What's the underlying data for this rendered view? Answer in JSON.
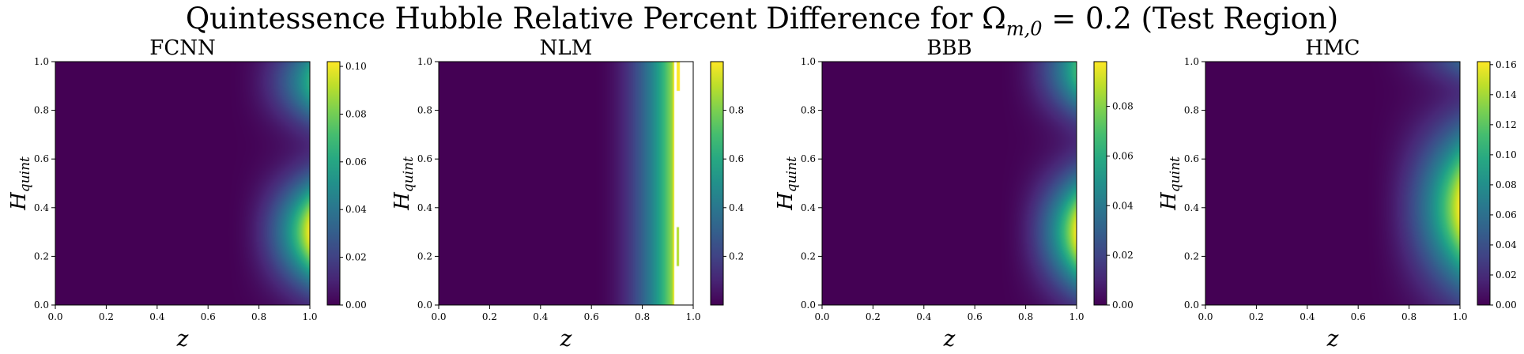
{
  "title": {
    "prefix": "Quintessence Hubble Relative Percent Difference for Ω",
    "subscript": "m,0",
    "suffix": " = 0.2 (Test Region)"
  },
  "colormap": "viridis",
  "colors": {
    "viridis_low": "#440154",
    "viridis_mid": "#21918c",
    "viridis_high": "#fde725"
  },
  "chart_data": [
    {
      "type": "heatmap",
      "title": "FCNN",
      "xlabel": "z",
      "ylabel": "H_quint",
      "xlim": [
        0,
        1
      ],
      "ylim": [
        0,
        1
      ],
      "xticks": [
        "0.0",
        "0.2",
        "0.4",
        "0.6",
        "0.8",
        "1.0"
      ],
      "yticks": [
        "0.0",
        "0.2",
        "0.4",
        "0.6",
        "0.8",
        "1.0"
      ],
      "colorbar": {
        "min": 0.0,
        "max": 0.102,
        "ticks": [
          "0.00",
          "0.02",
          "0.04",
          "0.06",
          "0.08",
          "0.10"
        ],
        "tick_values": [
          0.0,
          0.02,
          0.04,
          0.06,
          0.08,
          0.1
        ]
      },
      "pattern": "two lobes at right edge: lower lobe centered near H=0.3 (max ~0.10), upper lobe near H=0.9 (~0.07), minimum band near H=0.65"
    },
    {
      "type": "heatmap",
      "title": "NLM",
      "xlabel": "z",
      "ylabel": "H_quint",
      "xlim": [
        0,
        1
      ],
      "ylim": [
        0,
        1
      ],
      "xticks": [
        "0.0",
        "0.2",
        "0.4",
        "0.6",
        "0.8",
        "1.0"
      ],
      "yticks": [
        "0.0",
        "0.2",
        "0.4",
        "0.6",
        "0.8",
        "1.0"
      ],
      "colorbar": {
        "min": 0.0,
        "max": 1.0,
        "ticks": [
          "0.2",
          "0.4",
          "0.6",
          "0.8"
        ],
        "tick_values": [
          0.2,
          0.4,
          0.6,
          0.8
        ]
      },
      "pattern": "gradient increasing with z, NaN (blank) region for z > ~0.93"
    },
    {
      "type": "heatmap",
      "title": "BBB",
      "xlabel": "z",
      "ylabel": "H_quint",
      "xlim": [
        0,
        1
      ],
      "ylim": [
        0,
        1
      ],
      "xticks": [
        "0.0",
        "0.2",
        "0.4",
        "0.6",
        "0.8",
        "1.0"
      ],
      "yticks": [
        "0.0",
        "0.2",
        "0.4",
        "0.6",
        "0.8",
        "1.0"
      ],
      "colorbar": {
        "min": 0.0,
        "max": 0.098,
        "ticks": [
          "0.00",
          "0.02",
          "0.04",
          "0.06",
          "0.08"
        ],
        "tick_values": [
          0.0,
          0.02,
          0.04,
          0.06,
          0.08
        ]
      },
      "pattern": "two lobes at right edge: lower lobe near H=0.3 (~0.098), upper lobe near H=0.95 (~0.07)"
    },
    {
      "type": "heatmap",
      "title": "HMC",
      "xlabel": "z",
      "ylabel": "H_quint",
      "xlim": [
        0,
        1
      ],
      "ylim": [
        0,
        1
      ],
      "xticks": [
        "0.0",
        "0.2",
        "0.4",
        "0.6",
        "0.8",
        "1.0"
      ],
      "yticks": [
        "0.0",
        "0.2",
        "0.4",
        "0.6",
        "0.8",
        "1.0"
      ],
      "colorbar": {
        "min": 0.0,
        "max": 0.162,
        "ticks": [
          "0.00",
          "0.02",
          "0.04",
          "0.06",
          "0.08",
          "0.10",
          "0.12",
          "0.14",
          "0.16"
        ],
        "tick_values": [
          0.0,
          0.02,
          0.04,
          0.06,
          0.08,
          0.1,
          0.12,
          0.14,
          0.16
        ]
      },
      "pattern": "single large lobe at right edge centered near H=0.4 (max ~0.16), faint upper region near H=0.95, minimum band near H=0.82"
    }
  ]
}
